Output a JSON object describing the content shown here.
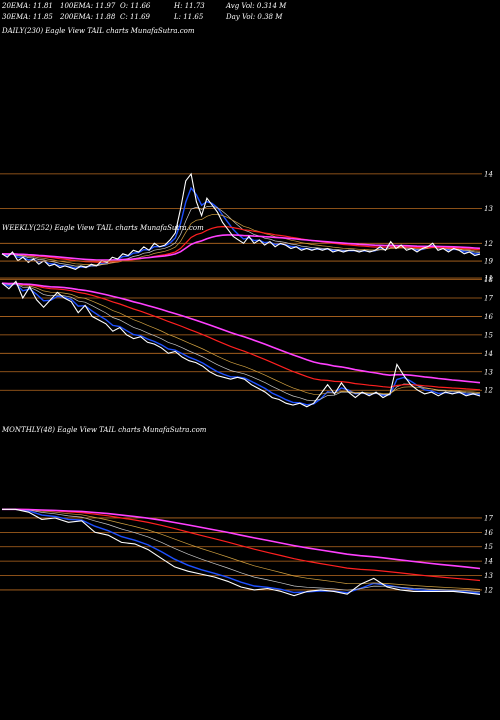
{
  "header": {
    "row1": [
      "20EMA: 11.81",
      "100EMA: 11.97",
      "O: 11.66",
      "H: 11.73",
      "Avg Vol: 0.314  M"
    ],
    "row2": [
      "30EMA: 11.85",
      "200EMA: 11.88",
      "C: 11.69",
      "L: 11.65",
      "Day Vol: 0.38  M"
    ]
  },
  "chart_data": [
    {
      "type": "line",
      "panel": "daily",
      "title": "DAILY(230) Eagle   View  TAIL  charts MunafaSutra.com",
      "y_ticks": [
        14,
        13,
        12,
        11
      ],
      "colors": {
        "price": "#ffffff",
        "ema_blue": "#1e50ff",
        "ema_pink": "#ff40ff",
        "ema_red": "#ff2020",
        "grid": "#b86a20"
      },
      "series": [
        {
          "values": [
            11.7,
            11.6,
            11.75,
            11.5,
            11.6,
            11.45,
            11.55,
            11.4,
            11.5,
            11.35,
            11.4,
            11.3,
            11.35,
            11.3,
            11.25,
            11.35,
            11.3,
            11.4,
            11.35,
            11.5,
            11.45,
            11.6,
            11.55,
            11.7,
            11.65,
            11.8,
            11.75,
            11.9,
            11.8,
            12.0,
            11.9,
            11.95,
            12.1,
            12.3,
            13.0,
            13.8,
            14.0,
            13.2,
            12.8,
            13.3,
            13.1,
            12.9,
            12.6,
            12.4,
            12.2,
            12.1,
            12.0,
            12.2,
            12.0,
            12.1,
            11.95,
            12.05,
            11.9,
            12.0,
            11.95,
            11.85,
            11.9,
            11.8,
            11.85,
            11.8,
            11.85,
            11.8,
            11.85,
            11.75,
            11.8,
            11.75,
            11.8,
            11.8,
            11.75,
            11.8,
            11.75,
            11.8,
            11.9,
            11.8,
            12.05,
            11.85,
            11.95,
            11.8,
            11.85,
            11.75,
            11.85,
            11.9,
            12.0,
            11.8,
            11.85,
            11.75,
            11.85,
            11.8,
            11.7,
            11.75,
            11.65,
            11.69
          ]
        }
      ]
    },
    {
      "type": "line",
      "panel": "weekly",
      "title": "WEEKLY(252) Eagle   View  TAIL  charts MunafaSutra.com",
      "y_ticks": [
        19,
        18,
        17,
        16,
        15,
        14,
        13,
        12
      ],
      "series": [
        {
          "values": [
            17.8,
            17.5,
            17.9,
            17.0,
            17.6,
            16.9,
            16.5,
            16.9,
            17.3,
            17.0,
            16.8,
            16.2,
            16.6,
            16.0,
            15.8,
            15.6,
            15.2,
            15.4,
            15.0,
            14.8,
            14.9,
            14.6,
            14.5,
            14.3,
            14.0,
            14.1,
            13.8,
            13.6,
            13.5,
            13.3,
            13.0,
            12.8,
            12.7,
            12.6,
            12.7,
            12.6,
            12.3,
            12.1,
            11.9,
            11.6,
            11.5,
            11.3,
            11.2,
            11.3,
            11.1,
            11.3,
            11.8,
            12.3,
            11.8,
            12.4,
            11.9,
            11.6,
            11.9,
            11.7,
            11.9,
            11.6,
            11.8,
            13.4,
            12.8,
            12.3,
            12.0,
            11.8,
            11.9,
            11.7,
            11.9,
            11.8,
            11.9,
            11.7,
            11.8,
            11.69
          ]
        }
      ]
    },
    {
      "type": "line",
      "panel": "monthly",
      "title": "MONTHLY(48) Eagle   View  TAIL  charts MunafaSutra.com",
      "y_ticks": [
        17,
        16,
        15,
        14,
        13,
        12
      ],
      "series": [
        {
          "values": [
            17.6,
            17.6,
            17.4,
            16.9,
            17.0,
            16.7,
            16.8,
            16.0,
            15.8,
            15.3,
            15.2,
            14.8,
            14.2,
            13.6,
            13.3,
            13.1,
            12.9,
            12.6,
            12.2,
            12.0,
            12.1,
            11.9,
            11.6,
            11.9,
            12.0,
            11.9,
            11.7,
            12.4,
            12.8,
            12.2,
            12.0,
            11.9,
            11.9,
            11.9,
            11.9,
            11.8,
            11.69
          ]
        }
      ]
    }
  ]
}
